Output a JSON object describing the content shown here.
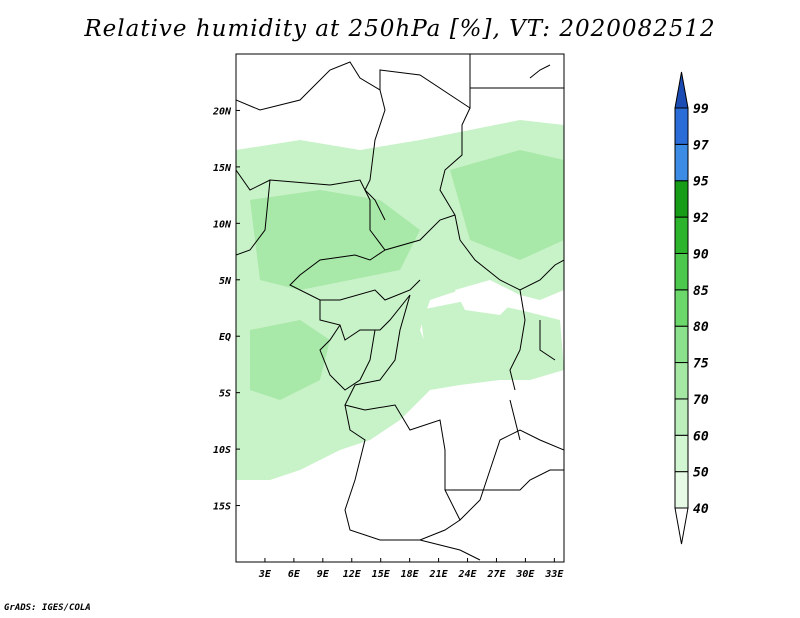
{
  "title": "Relative humidity at 250hPa [%], VT: 2020082512",
  "credit": "GrADS: IGES/COLA",
  "map": {
    "lon_range": [
      0,
      34
    ],
    "lat_range": [
      -20,
      25
    ],
    "lon_ticks": [
      "3E",
      "6E",
      "9E",
      "12E",
      "15E",
      "18E",
      "21E",
      "24E",
      "27E",
      "30E",
      "33E"
    ],
    "lat_ticks": [
      "20N",
      "15N",
      "10N",
      "5N",
      "EQ",
      "5S",
      "10S",
      "15S"
    ]
  },
  "colorbar": {
    "levels": [
      "40",
      "50",
      "60",
      "70",
      "75",
      "80",
      "85",
      "90",
      "92",
      "95",
      "97",
      "99"
    ],
    "colors": [
      "#e6fae6",
      "#d2f5d2",
      "#bceebc",
      "#a4e8a4",
      "#8ce28c",
      "#6cd86c",
      "#4cc84c",
      "#2db42d",
      "#169c16",
      "#3c8ce6",
      "#2a6cd8",
      "#1a4cb4"
    ]
  }
}
